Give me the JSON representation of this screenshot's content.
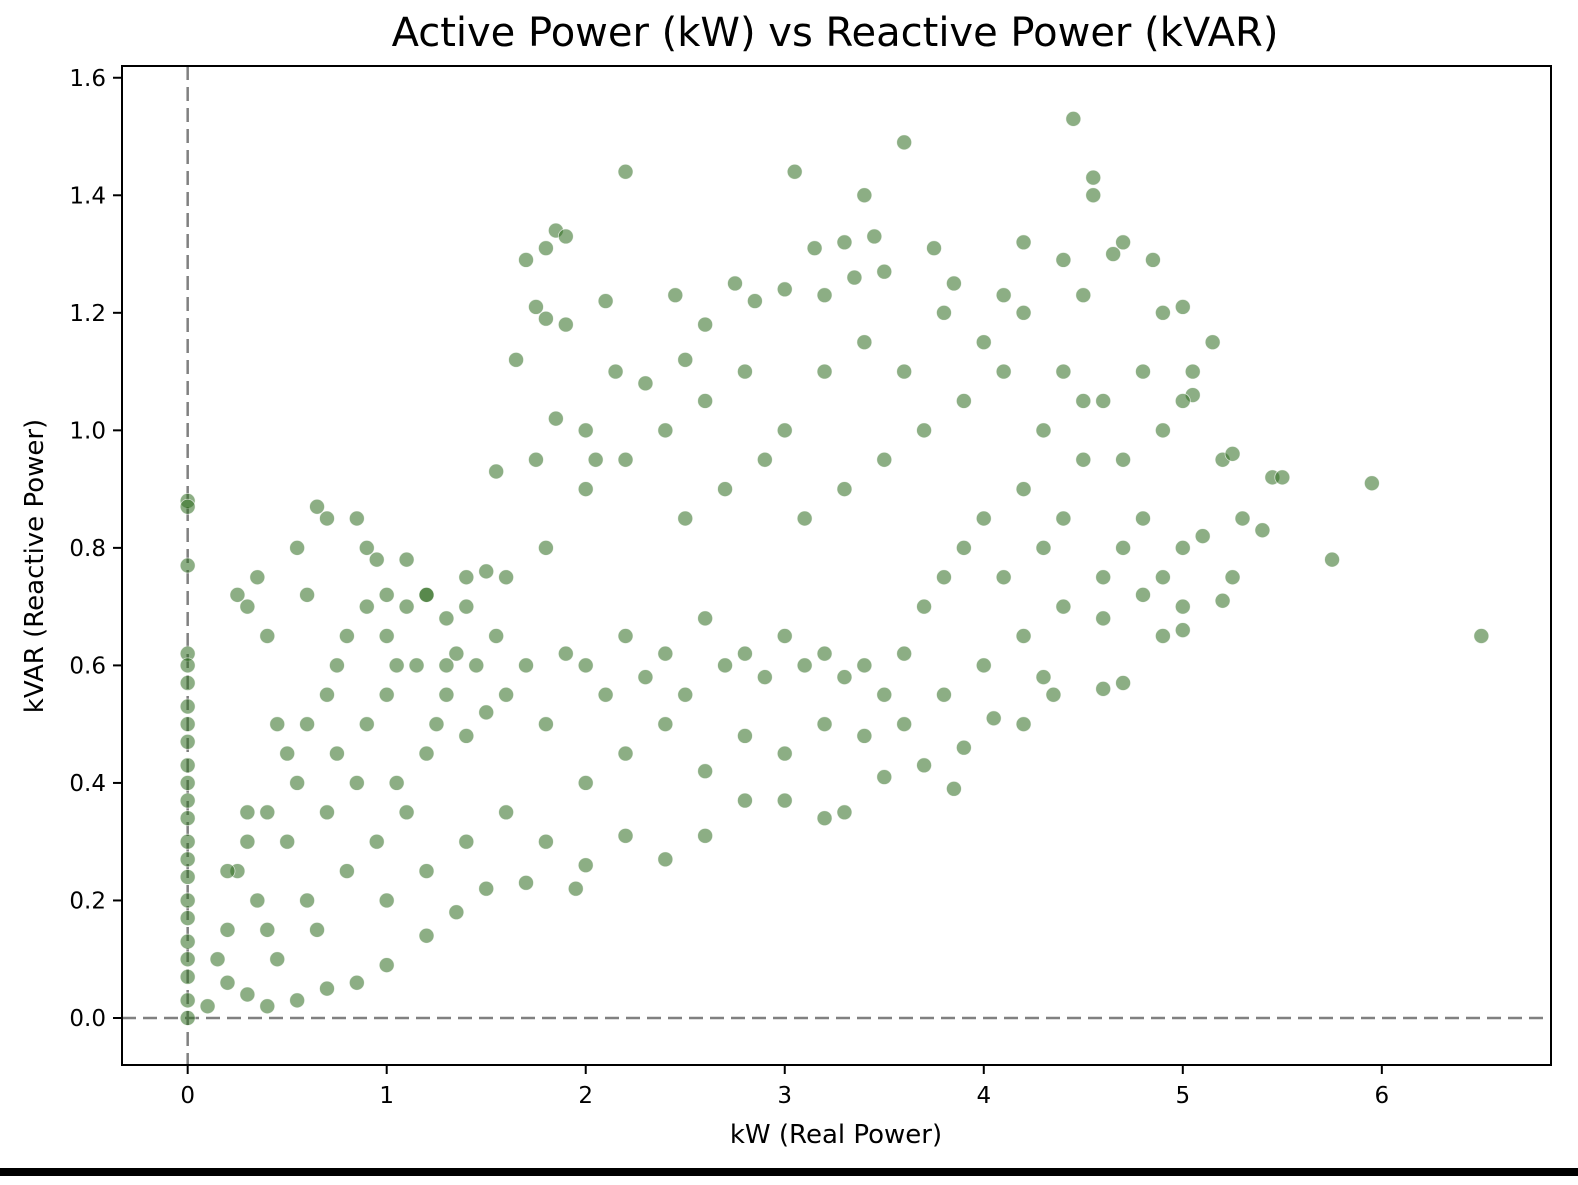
{
  "chart_data": {
    "type": "scatter",
    "title": "Active Power (kW) vs Reactive Power (kVAR)",
    "xlabel": "kW (Real Power)",
    "ylabel": "kVAR (Reactive Power)",
    "xlim": [
      -0.33,
      6.85
    ],
    "ylim": [
      -0.08,
      1.62
    ],
    "xticks": [
      0,
      1,
      2,
      3,
      4,
      5,
      6
    ],
    "yticks": [
      0.0,
      0.2,
      0.4,
      0.6,
      0.8,
      1.0,
      1.2,
      1.4,
      1.6
    ],
    "xtick_labels": [
      "0",
      "1",
      "2",
      "3",
      "4",
      "5",
      "6"
    ],
    "ytick_labels": [
      "0.0",
      "0.2",
      "0.4",
      "0.6",
      "0.8",
      "1.0",
      "1.2",
      "1.4",
      "1.6"
    ],
    "reference_lines": [
      {
        "axis": "x",
        "value": 0,
        "style": "dashed",
        "color": "#808080"
      },
      {
        "axis": "y",
        "value": 0,
        "style": "dashed",
        "color": "#808080"
      }
    ],
    "marker_color": "#2e6b1f",
    "marker_opacity": 0.55,
    "grid": false,
    "series": [
      {
        "points": [
          [
            0,
            0.88
          ],
          [
            0,
            0.87
          ],
          [
            0,
            0.77
          ],
          [
            0,
            0.62
          ],
          [
            0,
            0.6
          ],
          [
            0,
            0.57
          ],
          [
            0,
            0.53
          ],
          [
            0,
            0.5
          ],
          [
            0,
            0.47
          ],
          [
            0,
            0.43
          ],
          [
            0,
            0.4
          ],
          [
            0,
            0.37
          ],
          [
            0,
            0.34
          ],
          [
            0,
            0.3
          ],
          [
            0,
            0.27
          ],
          [
            0,
            0.24
          ],
          [
            0,
            0.2
          ],
          [
            0,
            0.17
          ],
          [
            0,
            0.13
          ],
          [
            0,
            0.1
          ],
          [
            0,
            0.07
          ],
          [
            0,
            0.03
          ],
          [
            0,
            0.0
          ],
          [
            0.1,
            0.02
          ],
          [
            0.15,
            0.1
          ],
          [
            0.2,
            0.15
          ],
          [
            0.25,
            0.25
          ],
          [
            0.3,
            0.35
          ],
          [
            0.25,
            0.72
          ],
          [
            0.3,
            0.7
          ],
          [
            0.35,
            0.75
          ],
          [
            0.4,
            0.65
          ],
          [
            0.45,
            0.5
          ],
          [
            0.55,
            0.8
          ],
          [
            0.6,
            0.72
          ],
          [
            0.65,
            0.87
          ],
          [
            0.7,
            0.85
          ],
          [
            0.75,
            0.6
          ],
          [
            0.85,
            0.85
          ],
          [
            0.9,
            0.8
          ],
          [
            0.95,
            0.78
          ],
          [
            1.0,
            0.72
          ],
          [
            1.05,
            0.6
          ],
          [
            1.1,
            0.78
          ],
          [
            1.2,
            0.72
          ],
          [
            1.3,
            0.68
          ],
          [
            1.4,
            0.75
          ],
          [
            1.5,
            0.76
          ],
          [
            1.55,
            0.93
          ],
          [
            1.65,
            1.12
          ],
          [
            1.7,
            1.29
          ],
          [
            1.75,
            1.21
          ],
          [
            1.8,
            1.19
          ],
          [
            1.8,
            1.31
          ],
          [
            1.85,
            1.34
          ],
          [
            1.9,
            1.33
          ],
          [
            1.9,
            1.18
          ],
          [
            1.85,
            1.02
          ],
          [
            1.75,
            0.95
          ],
          [
            2.0,
            1.0
          ],
          [
            2.05,
            0.95
          ],
          [
            2.1,
            1.22
          ],
          [
            2.15,
            1.1
          ],
          [
            2.2,
            1.44
          ],
          [
            2.3,
            1.08
          ],
          [
            2.45,
            1.23
          ],
          [
            2.5,
            1.12
          ],
          [
            2.6,
            1.18
          ],
          [
            2.75,
            1.25
          ],
          [
            2.85,
            1.22
          ],
          [
            3.0,
            1.24
          ],
          [
            3.05,
            1.44
          ],
          [
            3.15,
            1.31
          ],
          [
            3.2,
            1.23
          ],
          [
            3.3,
            1.32
          ],
          [
            3.35,
            1.26
          ],
          [
            3.4,
            1.4
          ],
          [
            3.45,
            1.33
          ],
          [
            3.6,
            1.49
          ],
          [
            3.5,
            1.27
          ],
          [
            3.75,
            1.31
          ],
          [
            3.85,
            1.25
          ],
          [
            4.1,
            1.23
          ],
          [
            4.2,
            1.32
          ],
          [
            4.4,
            1.29
          ],
          [
            4.45,
            1.53
          ],
          [
            4.55,
            1.43
          ],
          [
            4.55,
            1.4
          ],
          [
            4.5,
            1.23
          ],
          [
            4.65,
            1.3
          ],
          [
            4.7,
            1.32
          ],
          [
            4.85,
            1.29
          ],
          [
            4.9,
            1.2
          ],
          [
            5.0,
            1.21
          ],
          [
            5.05,
            1.1
          ],
          [
            5.05,
            1.06
          ],
          [
            5.15,
            1.15
          ],
          [
            5.2,
            0.95
          ],
          [
            5.25,
            0.96
          ],
          [
            5.3,
            0.85
          ],
          [
            5.45,
            0.92
          ],
          [
            5.5,
            0.92
          ],
          [
            5.4,
            0.83
          ],
          [
            5.75,
            0.78
          ],
          [
            5.95,
            0.91
          ],
          [
            6.5,
            0.65
          ],
          [
            5.2,
            0.71
          ],
          [
            5.25,
            0.75
          ],
          [
            5.0,
            0.66
          ],
          [
            4.9,
            0.65
          ],
          [
            4.7,
            0.57
          ],
          [
            4.6,
            0.56
          ],
          [
            4.3,
            0.58
          ],
          [
            4.2,
            0.5
          ],
          [
            4.35,
            0.55
          ],
          [
            4.05,
            0.51
          ],
          [
            3.9,
            0.46
          ],
          [
            3.85,
            0.39
          ],
          [
            3.7,
            0.43
          ],
          [
            3.5,
            0.41
          ],
          [
            3.3,
            0.35
          ],
          [
            3.2,
            0.34
          ],
          [
            3.0,
            0.37
          ],
          [
            2.8,
            0.37
          ],
          [
            2.6,
            0.31
          ],
          [
            2.4,
            0.27
          ],
          [
            2.2,
            0.31
          ],
          [
            2.0,
            0.26
          ],
          [
            1.95,
            0.22
          ],
          [
            1.7,
            0.23
          ],
          [
            1.5,
            0.22
          ],
          [
            1.35,
            0.18
          ],
          [
            1.2,
            0.14
          ],
          [
            1.0,
            0.09
          ],
          [
            0.85,
            0.06
          ],
          [
            0.7,
            0.05
          ],
          [
            0.55,
            0.03
          ],
          [
            0.4,
            0.02
          ],
          [
            0.3,
            0.04
          ],
          [
            0.2,
            0.06
          ],
          [
            0.2,
            0.25
          ],
          [
            0.3,
            0.3
          ],
          [
            0.35,
            0.2
          ],
          [
            0.4,
            0.15
          ],
          [
            0.45,
            0.1
          ],
          [
            0.5,
            0.3
          ],
          [
            0.55,
            0.4
          ],
          [
            0.6,
            0.2
          ],
          [
            0.65,
            0.15
          ],
          [
            0.7,
            0.35
          ],
          [
            0.75,
            0.45
          ],
          [
            0.8,
            0.25
          ],
          [
            0.85,
            0.4
          ],
          [
            0.9,
            0.5
          ],
          [
            0.95,
            0.3
          ],
          [
            1.0,
            0.55
          ],
          [
            1.05,
            0.4
          ],
          [
            1.1,
            0.35
          ],
          [
            1.15,
            0.6
          ],
          [
            1.2,
            0.45
          ],
          [
            1.25,
            0.5
          ],
          [
            1.3,
            0.55
          ],
          [
            1.35,
            0.62
          ],
          [
            1.4,
            0.48
          ],
          [
            1.45,
            0.6
          ],
          [
            1.5,
            0.52
          ],
          [
            1.55,
            0.65
          ],
          [
            1.6,
            0.55
          ],
          [
            1.7,
            0.6
          ],
          [
            1.8,
            0.5
          ],
          [
            1.9,
            0.62
          ],
          [
            2.0,
            0.6
          ],
          [
            2.1,
            0.55
          ],
          [
            2.2,
            0.65
          ],
          [
            2.3,
            0.58
          ],
          [
            2.4,
            0.62
          ],
          [
            2.5,
            0.55
          ],
          [
            2.6,
            0.68
          ],
          [
            2.7,
            0.6
          ],
          [
            2.8,
            0.62
          ],
          [
            2.9,
            0.58
          ],
          [
            3.0,
            0.65
          ],
          [
            3.1,
            0.6
          ],
          [
            3.2,
            0.62
          ],
          [
            3.3,
            0.58
          ],
          [
            3.4,
            0.6
          ],
          [
            3.5,
            0.55
          ],
          [
            3.6,
            0.62
          ],
          [
            3.7,
            0.7
          ],
          [
            3.8,
            0.75
          ],
          [
            3.9,
            0.8
          ],
          [
            4.0,
            0.85
          ],
          [
            4.1,
            0.75
          ],
          [
            4.2,
            0.9
          ],
          [
            4.3,
            0.8
          ],
          [
            4.4,
            0.85
          ],
          [
            4.5,
            0.95
          ],
          [
            4.6,
            0.75
          ],
          [
            4.7,
            0.8
          ],
          [
            4.8,
            0.85
          ],
          [
            4.9,
            0.75
          ],
          [
            5.0,
            0.8
          ],
          [
            5.1,
            0.82
          ],
          [
            2.5,
            0.85
          ],
          [
            2.7,
            0.9
          ],
          [
            2.9,
            0.95
          ],
          [
            3.1,
            0.85
          ],
          [
            3.3,
            0.9
          ],
          [
            3.5,
            0.95
          ],
          [
            3.7,
            1.0
          ],
          [
            3.9,
            1.05
          ],
          [
            4.1,
            1.1
          ],
          [
            4.3,
            1.0
          ],
          [
            4.5,
            1.05
          ],
          [
            4.7,
            0.95
          ],
          [
            4.9,
            1.0
          ],
          [
            2.2,
            0.95
          ],
          [
            2.0,
            0.9
          ],
          [
            1.8,
            0.8
          ],
          [
            1.6,
            0.75
          ],
          [
            2.4,
            1.0
          ],
          [
            2.6,
            1.05
          ],
          [
            2.8,
            1.1
          ],
          [
            3.0,
            1.0
          ],
          [
            3.2,
            1.1
          ],
          [
            3.4,
            1.15
          ],
          [
            3.6,
            1.1
          ],
          [
            3.8,
            1.2
          ],
          [
            4.0,
            1.15
          ],
          [
            4.2,
            1.2
          ],
          [
            4.4,
            1.1
          ],
          [
            4.6,
            1.05
          ],
          [
            4.8,
            1.1
          ],
          [
            5.0,
            1.05
          ],
          [
            2.0,
            0.4
          ],
          [
            2.2,
            0.45
          ],
          [
            2.4,
            0.5
          ],
          [
            2.6,
            0.42
          ],
          [
            2.8,
            0.48
          ],
          [
            3.0,
            0.45
          ],
          [
            3.2,
            0.5
          ],
          [
            3.4,
            0.48
          ],
          [
            3.6,
            0.5
          ],
          [
            3.8,
            0.55
          ],
          [
            4.0,
            0.6
          ],
          [
            4.2,
            0.65
          ],
          [
            4.4,
            0.7
          ],
          [
            4.6,
            0.68
          ],
          [
            4.8,
            0.72
          ],
          [
            5.0,
            0.7
          ],
          [
            1.0,
            0.2
          ],
          [
            1.2,
            0.25
          ],
          [
            1.4,
            0.3
          ],
          [
            1.6,
            0.35
          ],
          [
            1.8,
            0.3
          ],
          [
            0.4,
            0.35
          ],
          [
            0.5,
            0.45
          ],
          [
            0.6,
            0.5
          ],
          [
            0.7,
            0.55
          ],
          [
            0.8,
            0.65
          ],
          [
            0.9,
            0.7
          ],
          [
            1.0,
            0.65
          ],
          [
            1.1,
            0.7
          ],
          [
            1.2,
            0.72
          ],
          [
            1.3,
            0.6
          ],
          [
            1.4,
            0.7
          ]
        ]
      }
    ]
  }
}
